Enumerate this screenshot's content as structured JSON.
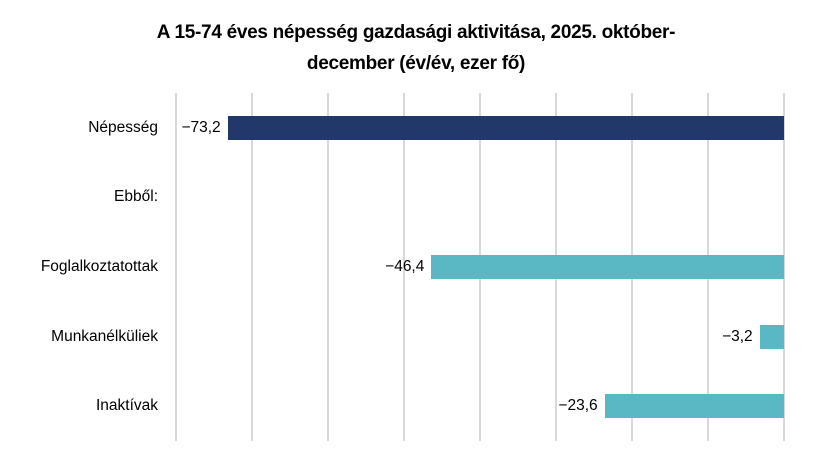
{
  "chart_data": {
    "type": "bar",
    "orientation": "horizontal",
    "title": "A 15-74 éves népesség gazdasági aktivitása, 2025. október-december (év/év, ezer fő)",
    "title_lines": [
      "A 15-74 éves népesség gazdasági aktivitása, 2025. október-",
      "december (év/év, ezer fő)"
    ],
    "categories": [
      "Népesség",
      "Ebből:",
      "Foglalkoztatottak",
      "Munkanélküliek",
      "Inaktívak"
    ],
    "values": [
      -73.2,
      null,
      -46.4,
      -3.2,
      -23.6
    ],
    "value_labels": [
      "−73,2",
      "",
      "−46,4",
      "−3,2",
      "−23,6"
    ],
    "bar_colors": [
      "#22386A",
      null,
      "#5AB7C4",
      "#5AB7C4",
      "#5AB7C4"
    ],
    "xlabel": "",
    "ylabel": "",
    "unit": "ezer fő",
    "xlim": [
      -80,
      0
    ],
    "grid_step": 10,
    "grid": true,
    "gridline_color": "#D9D9D9",
    "legend_position": "none",
    "value_label_position": "outside-end",
    "text_color": "#000000",
    "background_color": "#FFFFFF"
  }
}
